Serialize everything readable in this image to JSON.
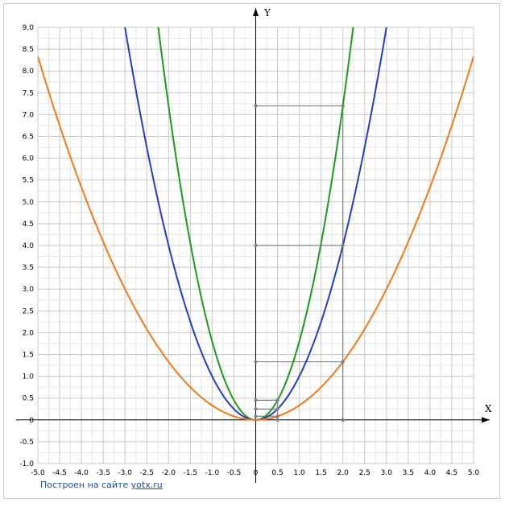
{
  "chart_data": {
    "type": "line",
    "title": "",
    "xlabel": "X",
    "ylabel": "Y",
    "xlim": [
      -5,
      5
    ],
    "ylim": [
      -1,
      9
    ],
    "grid": true,
    "x_ticks": [
      "-5.0",
      "-4.5",
      "-4.0",
      "-3.5",
      "-3.0",
      "-2.5",
      "-2.0",
      "-1.5",
      "-1.0",
      "-0.5",
      "0",
      "0.5",
      "1.0",
      "1.5",
      "2.0",
      "2.5",
      "3.0",
      "3.5",
      "4.0",
      "4.5",
      "5.0"
    ],
    "y_ticks": [
      "-1.0",
      "-0.5",
      "0",
      "0.5",
      "1.0",
      "1.5",
      "2.0",
      "2.5",
      "3.0",
      "3.5",
      "4.0",
      "4.5",
      "5.0",
      "5.5",
      "6.0",
      "6.5",
      "7.0",
      "7.5",
      "8.0",
      "8.5",
      "9.0"
    ],
    "series": [
      {
        "formula_coefficient": 1.8,
        "color": "#1e9a1e"
      },
      {
        "formula_coefficient": 1.0,
        "color": "#2040c0"
      },
      {
        "formula_coefficient": 0.3333,
        "color": "#f07a1a"
      }
    ],
    "markers": [
      {
        "x": 2,
        "y": 7.2
      },
      {
        "x": 2,
        "y": 4.0
      },
      {
        "x": 2,
        "y": 1.333
      },
      {
        "x": 0.5,
        "y": 0.45
      },
      {
        "x": 0.5,
        "y": 0.25
      },
      {
        "x": 0.5,
        "y": 0.0833
      },
      {
        "x": 2,
        "y": 0
      },
      {
        "x": 0.5,
        "y": 0
      }
    ]
  },
  "footer": {
    "credit_text": "Построен на сайте ",
    "credit_link": "yotx.ru"
  }
}
